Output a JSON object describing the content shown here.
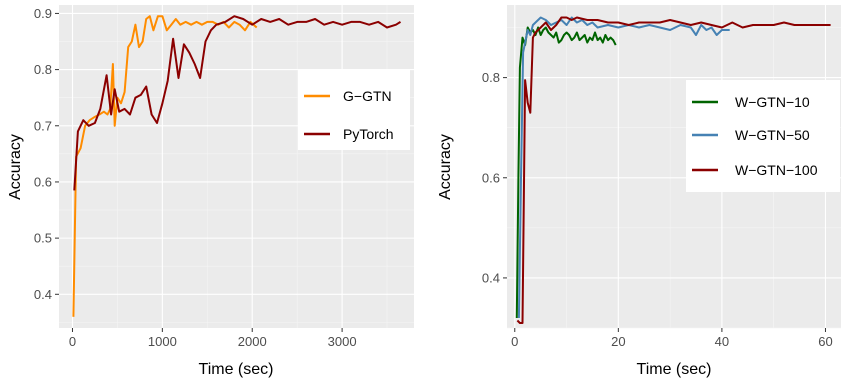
{
  "chart_data": [
    {
      "type": "line",
      "xlabel": "Time (sec)",
      "ylabel": "Accuracy",
      "xlim": [
        -150,
        3800
      ],
      "ylim": [
        0.34,
        0.915
      ],
      "xticks": [
        0,
        1000,
        2000,
        3000
      ],
      "yticks": [
        0.4,
        0.5,
        0.6,
        0.7,
        0.8,
        0.9
      ],
      "grid": true,
      "legend_position": "right",
      "series": [
        {
          "name": "G−GTN",
          "color": "#ff8c00",
          "x": [
            10,
            40,
            90,
            140,
            190,
            240,
            300,
            350,
            390,
            420,
            450,
            470,
            500,
            540,
            580,
            620,
            660,
            700,
            740,
            780,
            820,
            860,
            900,
            950,
            1000,
            1050,
            1100,
            1150,
            1200,
            1260,
            1320,
            1380,
            1440,
            1500,
            1560,
            1620,
            1680,
            1740,
            1800,
            1860,
            1920,
            1980,
            2050
          ],
          "values": [
            0.36,
            0.645,
            0.66,
            0.7,
            0.71,
            0.715,
            0.72,
            0.725,
            0.72,
            0.73,
            0.81,
            0.7,
            0.75,
            0.74,
            0.76,
            0.84,
            0.85,
            0.88,
            0.84,
            0.85,
            0.89,
            0.895,
            0.87,
            0.895,
            0.895,
            0.87,
            0.88,
            0.89,
            0.88,
            0.885,
            0.88,
            0.885,
            0.88,
            0.885,
            0.885,
            0.88,
            0.885,
            0.875,
            0.885,
            0.88,
            0.87,
            0.885,
            0.875
          ]
        },
        {
          "name": "PyTorch",
          "color": "#8b0000",
          "x": [
            20,
            60,
            120,
            180,
            250,
            310,
            380,
            430,
            470,
            520,
            580,
            640,
            700,
            760,
            820,
            880,
            940,
            1000,
            1060,
            1120,
            1180,
            1240,
            1300,
            1360,
            1420,
            1480,
            1540,
            1600,
            1700,
            1800,
            1900,
            2000,
            2100,
            2200,
            2300,
            2400,
            2500,
            2600,
            2700,
            2800,
            2900,
            3000,
            3100,
            3200,
            3300,
            3400,
            3500,
            3600,
            3650
          ],
          "values": [
            0.585,
            0.69,
            0.71,
            0.7,
            0.705,
            0.73,
            0.79,
            0.72,
            0.765,
            0.725,
            0.73,
            0.72,
            0.75,
            0.755,
            0.77,
            0.72,
            0.705,
            0.74,
            0.78,
            0.855,
            0.785,
            0.845,
            0.83,
            0.81,
            0.785,
            0.85,
            0.87,
            0.88,
            0.885,
            0.895,
            0.89,
            0.88,
            0.89,
            0.885,
            0.89,
            0.88,
            0.885,
            0.885,
            0.89,
            0.88,
            0.885,
            0.88,
            0.885,
            0.885,
            0.88,
            0.885,
            0.875,
            0.88,
            0.885
          ]
        }
      ]
    },
    {
      "type": "line",
      "xlabel": "Time (sec)",
      "ylabel": "Accuracy",
      "xlim": [
        -1.5,
        63
      ],
      "ylim": [
        0.3,
        0.945
      ],
      "xticks": [
        0,
        20,
        40,
        60
      ],
      "yticks": [
        0.4,
        0.6,
        0.8
      ],
      "grid": true,
      "legend_position": "right",
      "series": [
        {
          "name": "W−GTN−10",
          "color": "#006400",
          "x": [
            0.4,
            0.7,
            1.0,
            1.5,
            2.0,
            2.5,
            3.0,
            3.5,
            4.0,
            4.5,
            5.0,
            5.5,
            6.0,
            6.5,
            7.0,
            7.5,
            8.0,
            8.5,
            9.0,
            9.5,
            10.0,
            10.5,
            11.0,
            11.5,
            12.0,
            12.5,
            13.0,
            13.5,
            14.0,
            14.5,
            15.0,
            15.5,
            16.0,
            16.5,
            17.0,
            17.5,
            18.0,
            18.5,
            19.0,
            19.5
          ],
          "values": [
            0.32,
            0.6,
            0.82,
            0.88,
            0.865,
            0.9,
            0.89,
            0.895,
            0.885,
            0.9,
            0.885,
            0.895,
            0.9,
            0.89,
            0.885,
            0.88,
            0.89,
            0.87,
            0.875,
            0.885,
            0.89,
            0.885,
            0.875,
            0.88,
            0.89,
            0.875,
            0.88,
            0.885,
            0.87,
            0.88,
            0.875,
            0.89,
            0.875,
            0.88,
            0.87,
            0.885,
            0.875,
            0.88,
            0.875,
            0.865
          ]
        },
        {
          "name": "W−GTN−50",
          "color": "#4682b4",
          "x": [
            0.8,
            1.2,
            1.6,
            2.0,
            2.5,
            3.0,
            3.5,
            4.0,
            5.0,
            6.0,
            7.0,
            8.0,
            9.0,
            10.0,
            11.0,
            12.0,
            13.0,
            14.0,
            15.0,
            16.0,
            18.0,
            20.0,
            22.0,
            24.0,
            26.0,
            28.0,
            30.0,
            32.0,
            34.0,
            35.0,
            36.0,
            37.0,
            38.0,
            39.0,
            40.0,
            41.0,
            41.5
          ],
          "values": [
            0.32,
            0.6,
            0.85,
            0.87,
            0.895,
            0.885,
            0.905,
            0.91,
            0.92,
            0.915,
            0.905,
            0.91,
            0.915,
            0.905,
            0.92,
            0.91,
            0.915,
            0.905,
            0.91,
            0.9,
            0.905,
            0.9,
            0.905,
            0.9,
            0.905,
            0.9,
            0.895,
            0.905,
            0.9,
            0.885,
            0.905,
            0.895,
            0.9,
            0.885,
            0.895,
            0.895,
            0.895
          ]
        },
        {
          "name": "W−GTN−100",
          "color": "#8b0000",
          "x": [
            0.5,
            1.0,
            1.5,
            2.0,
            2.5,
            3.0,
            3.5,
            4.0,
            5.0,
            6.0,
            7.0,
            8.0,
            9.0,
            10.0,
            11.0,
            12.0,
            14.0,
            16.0,
            18.0,
            20.0,
            22.0,
            24.0,
            26.0,
            28.0,
            30.0,
            32.0,
            34.0,
            36.0,
            38.0,
            40.0,
            42.0,
            44.0,
            46.0,
            48.0,
            50.0,
            52.0,
            54.0,
            56.0,
            58.0,
            60.0,
            61.0
          ],
          "values": [
            0.315,
            0.31,
            0.31,
            0.795,
            0.75,
            0.73,
            0.88,
            0.89,
            0.9,
            0.91,
            0.895,
            0.905,
            0.92,
            0.92,
            0.915,
            0.92,
            0.915,
            0.915,
            0.91,
            0.91,
            0.905,
            0.91,
            0.91,
            0.91,
            0.915,
            0.91,
            0.905,
            0.91,
            0.905,
            0.9,
            0.91,
            0.9,
            0.905,
            0.905,
            0.905,
            0.91,
            0.905,
            0.905,
            0.905,
            0.905,
            0.905
          ]
        }
      ]
    }
  ]
}
